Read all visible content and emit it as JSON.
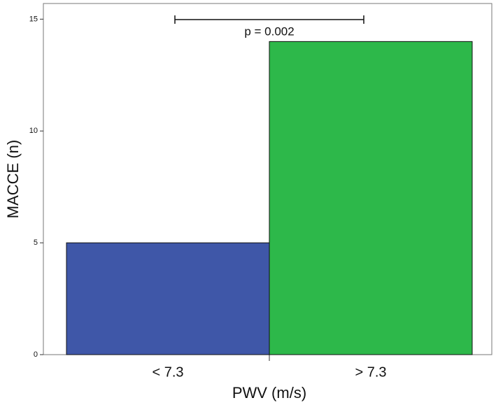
{
  "chart_data": {
    "type": "bar",
    "categories": [
      "< 7.3",
      "> 7.3"
    ],
    "values": [
      5,
      14
    ],
    "colors": [
      "#3f57a8",
      "#2db84a"
    ],
    "x_label": "PWV (m/s)",
    "y_label": "MACCE (n)",
    "annotation": "p = 0.002",
    "ylim": [
      0,
      15.7
    ],
    "yticks": [
      0,
      5,
      10,
      15
    ],
    "grid": false
  }
}
